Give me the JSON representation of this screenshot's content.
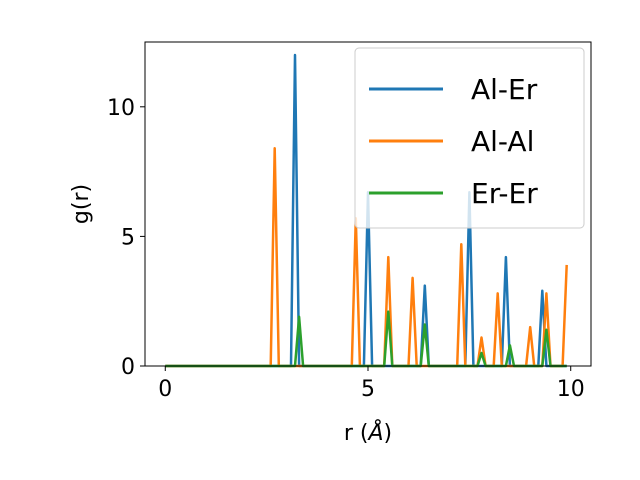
{
  "chart_data": {
    "type": "line",
    "title": "",
    "xlabel": "r (",
    "xlabel_symbol": "Å",
    "xlabel_suffix": ")",
    "ylabel": "g(r)",
    "xlim": [
      -0.5,
      10.5
    ],
    "ylim": [
      0,
      12.5
    ],
    "xticks": [
      0,
      5,
      10
    ],
    "xtick_labels": [
      "0",
      "5",
      "10"
    ],
    "yticks": [
      0,
      5,
      10
    ],
    "ytick_labels": [
      "0",
      "5",
      "10"
    ],
    "grid": false,
    "legend_position": "top-right",
    "series": [
      {
        "name": "Al-Er",
        "color": "#1f77b4",
        "x": [
          0,
          3.0,
          3.1,
          3.2,
          3.3,
          3.4,
          4.9,
          5.0,
          5.1,
          6.3,
          6.4,
          6.5,
          7.4,
          7.5,
          7.6,
          8.3,
          8.4,
          8.5,
          9.2,
          9.3,
          9.4,
          9.9
        ],
        "y": [
          0,
          0,
          0,
          12.0,
          0,
          0,
          0,
          6.7,
          0,
          0,
          3.1,
          0,
          0,
          6.7,
          0,
          0,
          4.2,
          0,
          0,
          2.9,
          0,
          0
        ]
      },
      {
        "name": "Al-Al",
        "color": "#ff7f0e",
        "x": [
          0,
          2.6,
          2.7,
          2.8,
          4.6,
          4.7,
          4.8,
          5.4,
          5.5,
          5.6,
          6.0,
          6.1,
          6.2,
          7.2,
          7.3,
          7.4,
          7.7,
          7.8,
          7.9,
          8.1,
          8.2,
          8.3,
          8.9,
          9.0,
          9.1,
          9.3,
          9.4,
          9.5,
          9.8,
          9.9
        ],
        "y": [
          0,
          0,
          8.4,
          0,
          0,
          5.7,
          0,
          0,
          4.2,
          0,
          0,
          3.4,
          0,
          0,
          4.7,
          0,
          0,
          1.1,
          0,
          0,
          2.8,
          0,
          0,
          1.5,
          0,
          0,
          2.8,
          0,
          0,
          3.9
        ]
      },
      {
        "name": "Er-Er",
        "color": "#2ca02c",
        "x": [
          0,
          3.2,
          3.3,
          3.4,
          5.4,
          5.5,
          5.6,
          6.3,
          6.4,
          6.5,
          7.7,
          7.8,
          7.9,
          8.4,
          8.5,
          8.6,
          9.3,
          9.4,
          9.5,
          9.9
        ],
        "y": [
          0,
          0,
          1.9,
          0,
          0,
          2.1,
          0,
          0,
          1.6,
          0,
          0,
          0.5,
          0,
          0,
          0.8,
          0,
          0,
          1.4,
          0,
          0
        ]
      }
    ]
  }
}
